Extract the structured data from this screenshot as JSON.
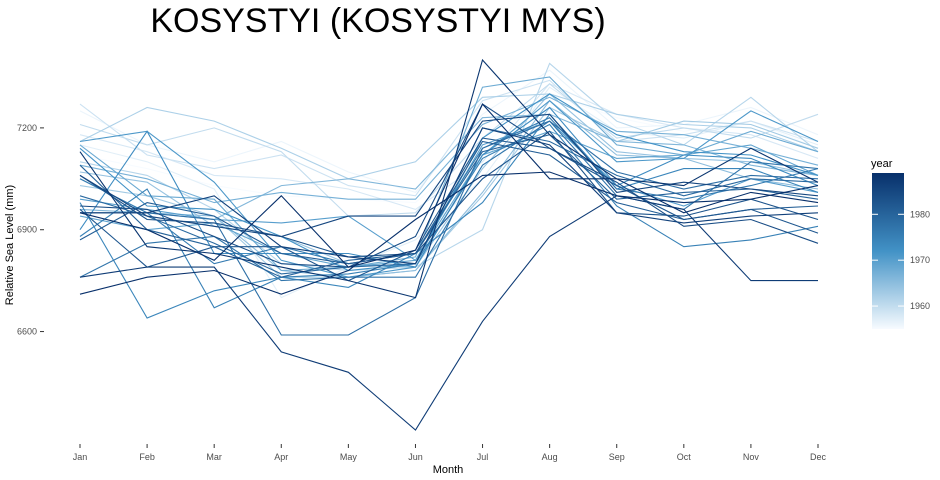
{
  "chart_data": {
    "type": "line",
    "title": "KOSYSTYI (KOSYSTYI MYS)",
    "xlabel": "Month",
    "ylabel": "Relative Sea Level (mm)",
    "categories": [
      "Jan",
      "Feb",
      "Mar",
      "Apr",
      "May",
      "Jun",
      "Jul",
      "Aug",
      "Sep",
      "Oct",
      "Nov",
      "Dec"
    ],
    "ylim": [
      6400,
      7400
    ],
    "yticks": [
      6600,
      6900,
      7200
    ],
    "grid": false,
    "color_scale": {
      "title": "year",
      "min": 1955,
      "max": 1989,
      "ticks": [
        1960,
        1970,
        1980
      ],
      "low_color": "#f7fbff",
      "high_color": "#08306b"
    },
    "series": [
      {
        "year": 1955,
        "values": [
          7120,
          7080,
          7030,
          7000,
          6990,
          6980,
          7150,
          7300,
          7230,
          7190,
          7220,
          7140
        ]
      },
      {
        "year": 1956,
        "values": [
          7250,
          7150,
          7100,
          7160,
          7070,
          7010,
          7240,
          7370,
          7200,
          7210,
          7260,
          7180
        ]
      },
      {
        "year": 1957,
        "values": [
          7150,
          7100,
          7020,
          6700,
          6790,
          6870,
          7050,
          7320,
          7190,
          7170,
          7220,
          7150
        ]
      },
      {
        "year": 1958,
        "values": [
          7180,
          7130,
          7060,
          7050,
          7020,
          6960,
          7100,
          7330,
          7240,
          7200,
          7180,
          7110
        ]
      },
      {
        "year": 1959,
        "values": [
          7270,
          7120,
          7080,
          7120,
          7030,
          7000,
          7280,
          7340,
          7160,
          7180,
          7220,
          7160
        ]
      },
      {
        "year": 1960,
        "values": [
          7210,
          7150,
          7200,
          7130,
          6940,
          6950,
          7170,
          7330,
          7170,
          7200,
          7170,
          7240
        ]
      },
      {
        "year": 1961,
        "values": [
          7100,
          7060,
          6960,
          6800,
          6780,
          6790,
          6900,
          7390,
          7220,
          7150,
          7290,
          7130
        ]
      },
      {
        "year": 1962,
        "values": [
          7160,
          7260,
          7220,
          7140,
          7050,
          7100,
          7290,
          7300,
          7240,
          7210,
          7200,
          7130
        ]
      },
      {
        "year": 1963,
        "values": [
          7030,
          7000,
          6940,
          6760,
          6760,
          6780,
          7000,
          7260,
          7160,
          7220,
          7210,
          7140
        ]
      },
      {
        "year": 1964,
        "values": [
          7070,
          7040,
          6910,
          6880,
          6800,
          6790,
          7080,
          7300,
          7130,
          7110,
          7100,
          7060
        ]
      },
      {
        "year": 1965,
        "values": [
          7050,
          6950,
          6940,
          6780,
          6760,
          6780,
          7010,
          7280,
          7120,
          7110,
          7050,
          7020
        ]
      },
      {
        "year": 1966,
        "values": [
          6960,
          6950,
          6930,
          7030,
          7050,
          7020,
          7230,
          7240,
          7160,
          7150,
          7090,
          7060
        ]
      },
      {
        "year": 1967,
        "values": [
          7090,
          7050,
          6980,
          7010,
          6990,
          6990,
          7210,
          7290,
          7190,
          7180,
          7140,
          7090
        ]
      },
      {
        "year": 1968,
        "values": [
          7150,
          7000,
          6990,
          6780,
          6790,
          6820,
          7320,
          7350,
          7150,
          7120,
          7190,
          7130
        ]
      },
      {
        "year": 1969,
        "values": [
          6940,
          6900,
          6920,
          6830,
          6790,
          6810,
          7120,
          7190,
          7110,
          7120,
          7150,
          7060
        ]
      },
      {
        "year": 1970,
        "values": [
          6990,
          6960,
          6930,
          6920,
          6940,
          6810,
          7150,
          7220,
          7030,
          6970,
          7050,
          7010
        ]
      },
      {
        "year": 1971,
        "values": [
          7160,
          7190,
          7040,
          6810,
          6760,
          6790,
          7120,
          7280,
          7100,
          7110,
          7250,
          7160
        ]
      },
      {
        "year": 1972,
        "values": [
          7140,
          6970,
          6960,
          6880,
          6780,
          6800,
          7170,
          7300,
          7180,
          7130,
          7120,
          7060
        ]
      },
      {
        "year": 1973,
        "values": [
          6900,
          7190,
          6830,
          6830,
          6830,
          6790,
          7120,
          7260,
          7030,
          7120,
          7110,
          7030
        ]
      },
      {
        "year": 1974,
        "values": [
          6980,
          6640,
          6720,
          6760,
          6730,
          6830,
          6980,
          7240,
          7020,
          7080,
          7080,
          7010
        ]
      },
      {
        "year": 1975,
        "values": [
          6880,
          7020,
          6670,
          6760,
          6770,
          6800,
          7110,
          7210,
          6970,
          6850,
          6870,
          6910
        ]
      },
      {
        "year": 1976,
        "values": [
          7050,
          6950,
          6800,
          6850,
          6800,
          6830,
          7140,
          7230,
          7020,
          6990,
          7030,
          7080
        ]
      },
      {
        "year": 1977,
        "values": [
          6760,
          6860,
          6880,
          6750,
          6760,
          6760,
          7090,
          7220,
          7000,
          6960,
          7100,
          7080
        ]
      },
      {
        "year": 1978,
        "values": [
          6950,
          6950,
          6930,
          6590,
          6590,
          6700,
          7140,
          7220,
          7070,
          7020,
          7060,
          7050
        ]
      },
      {
        "year": 1979,
        "values": [
          7000,
          6940,
          6860,
          6770,
          6790,
          6800,
          7200,
          7160,
          7060,
          7000,
          7050,
          7040
        ]
      },
      {
        "year": 1980,
        "values": [
          7090,
          6900,
          6850,
          6760,
          6810,
          6830,
          7130,
          7180,
          6990,
          7010,
          7020,
          6990
        ]
      },
      {
        "year": 1981,
        "values": [
          6870,
          6980,
          6940,
          6830,
          6800,
          6830,
          7160,
          7120,
          6980,
          6930,
          6960,
          6970
        ]
      },
      {
        "year": 1982,
        "values": [
          6960,
          6790,
          6850,
          6850,
          6750,
          6840,
          7170,
          7140,
          7030,
          6930,
          6960,
          6890
        ]
      },
      {
        "year": 1983,
        "values": [
          7060,
          6930,
          6920,
          6880,
          6820,
          6830,
          7050,
          7190,
          6950,
          6940,
          6990,
          6930
        ]
      },
      {
        "year": 1984,
        "values": [
          6970,
          6960,
          6880,
          6800,
          6790,
          6880,
          7270,
          7140,
          7040,
          6910,
          6930,
          6860
        ]
      },
      {
        "year": 1985,
        "values": [
          7060,
          6940,
          6910,
          6880,
          6940,
          6940,
          7220,
          7240,
          7010,
          7040,
          7020,
          7000
        ]
      },
      {
        "year": 1986,
        "values": [
          6950,
          6950,
          7000,
          6850,
          6820,
          6800,
          7200,
          7150,
          6950,
          6920,
          6940,
          6950
        ]
      },
      {
        "year": 1987,
        "values": [
          6760,
          6790,
          6790,
          6540,
          6480,
          6310,
          6630,
          6880,
          7000,
          6960,
          6750,
          6750
        ]
      },
      {
        "year": 1988,
        "values": [
          7130,
          6850,
          6830,
          6790,
          6750,
          6700,
          7400,
          7180,
          7050,
          7030,
          7140,
          7040
        ]
      },
      {
        "year": 1989,
        "values": [
          6950,
          6900,
          6810,
          7000,
          6790,
          6840,
          7270,
          7050,
          7050,
          6950,
          7010,
          6980
        ]
      },
      {
        "year": 1989,
        "values": [
          6710,
          6760,
          6780,
          6710,
          6780,
          6930,
          7060,
          7070,
          7000,
          6980,
          6990,
          7030
        ]
      }
    ]
  }
}
